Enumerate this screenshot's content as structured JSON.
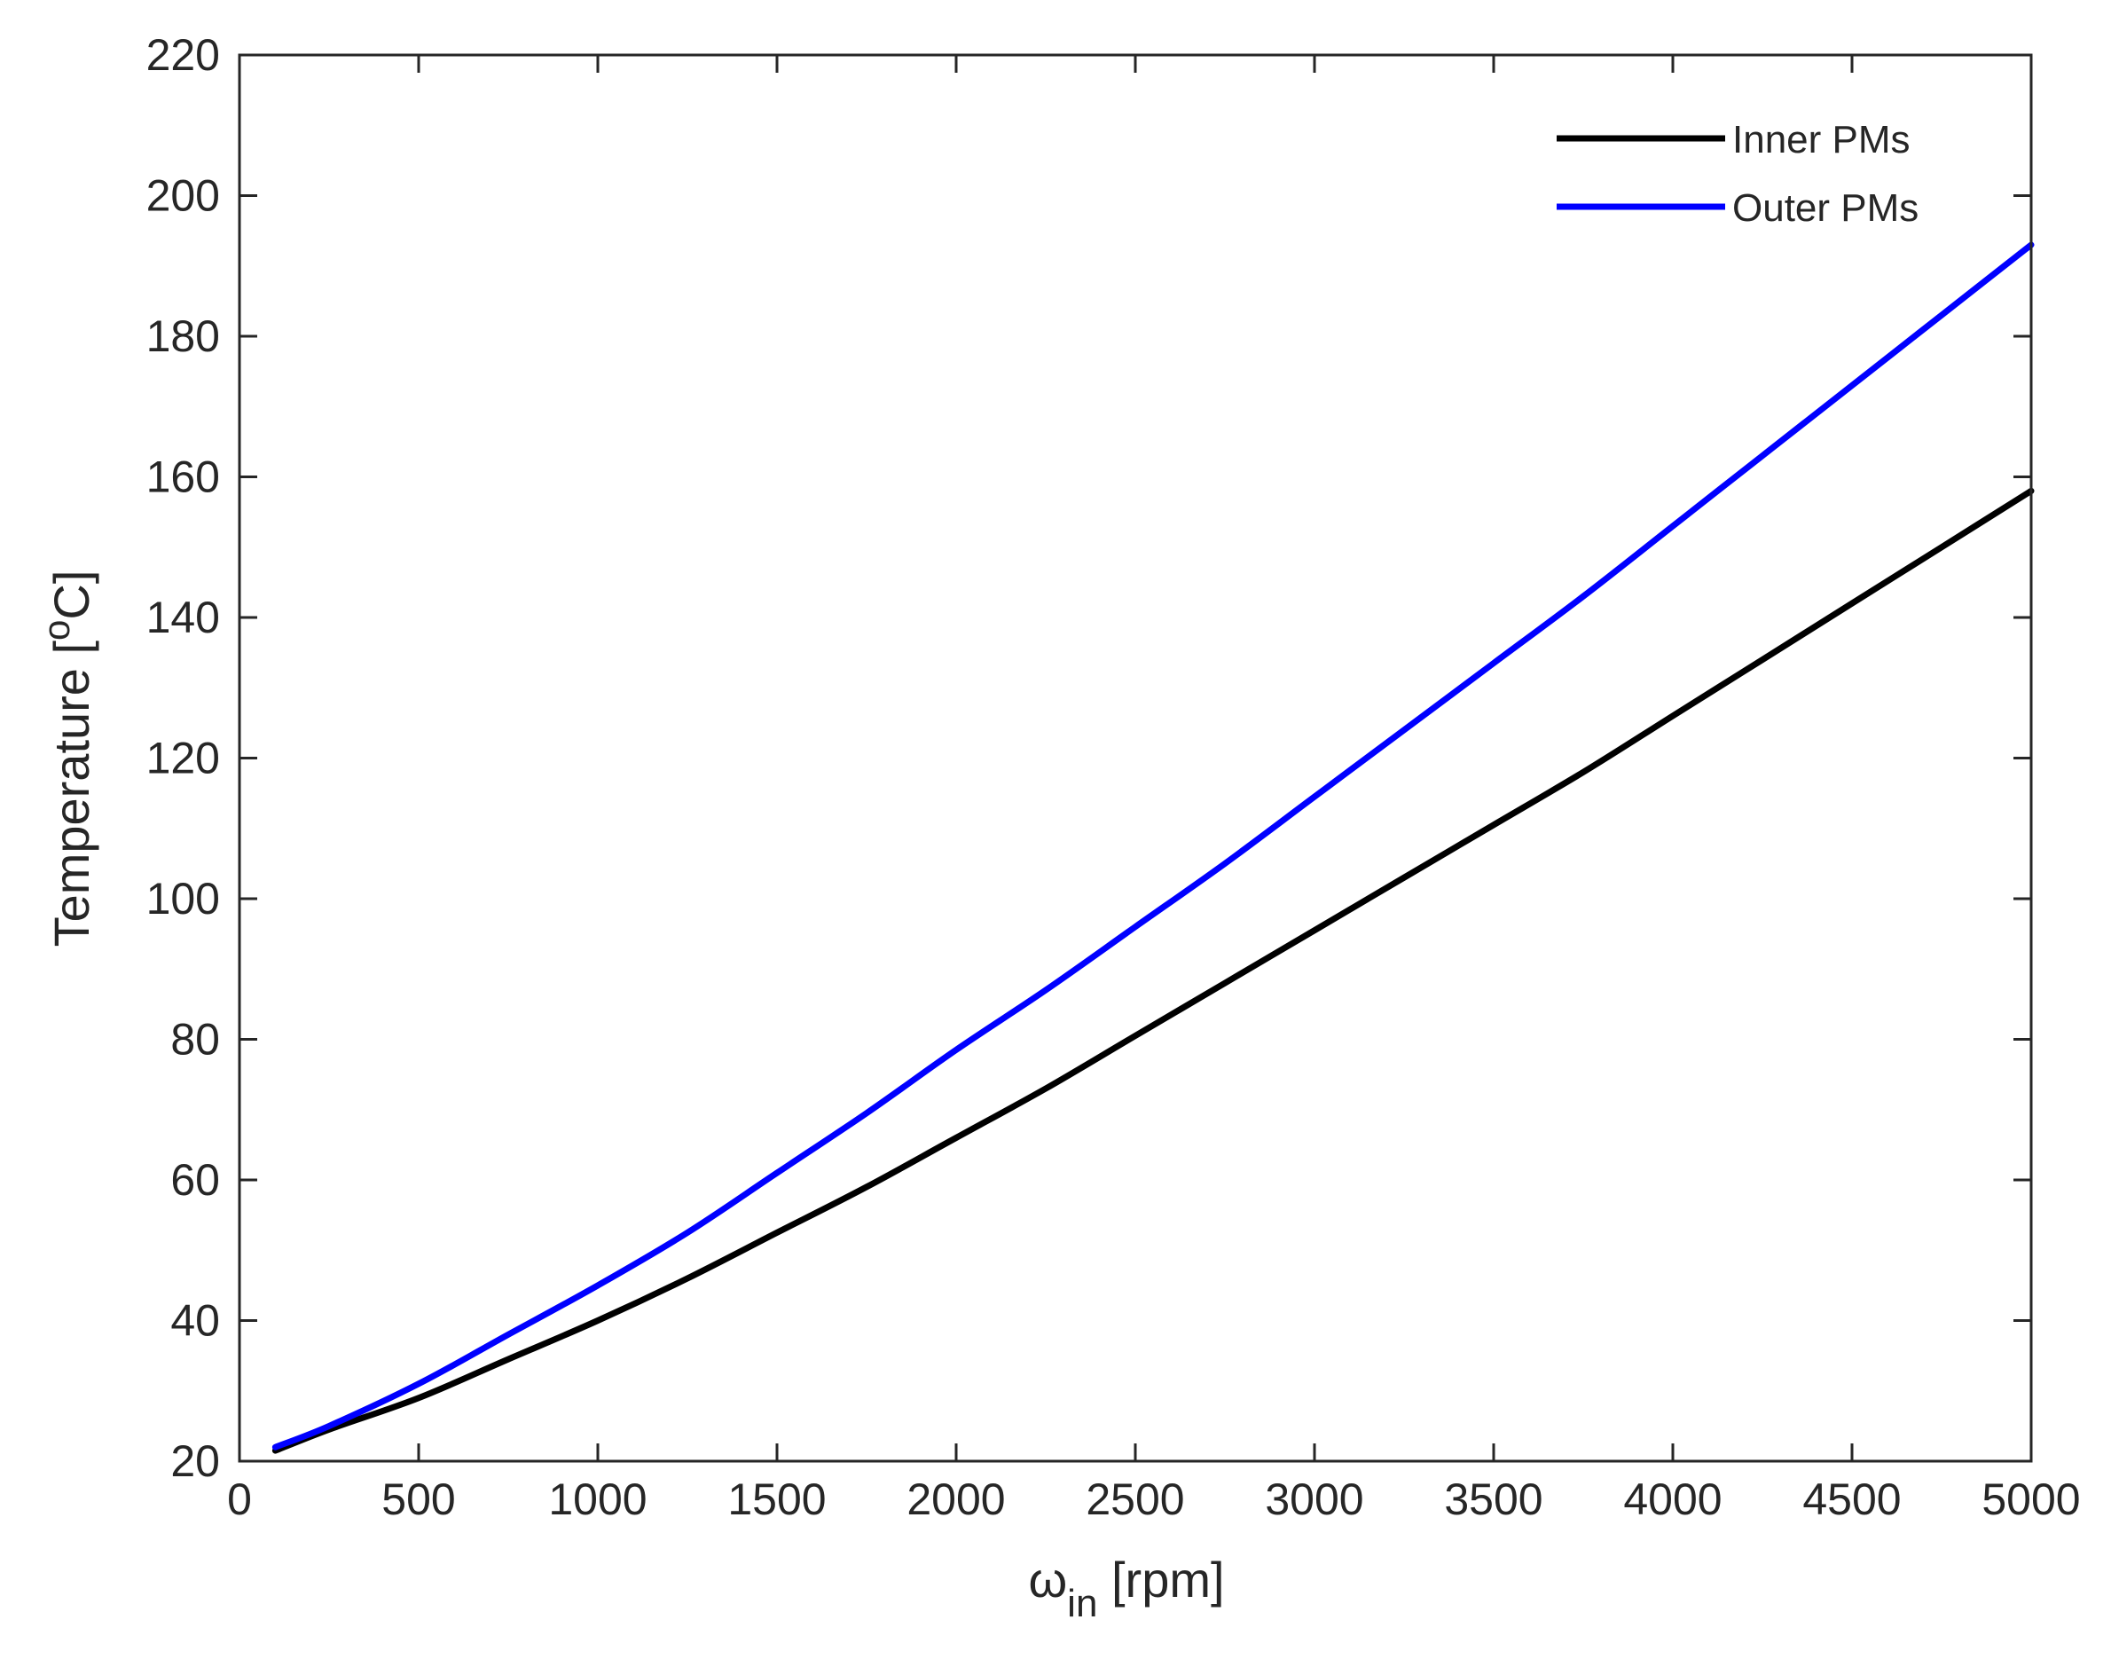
{
  "chart_data": {
    "type": "line",
    "xlabel": {
      "main": "ω",
      "sub": "in",
      "rest": " [rpm]"
    },
    "ylabel": {
      "main": "Temperature [",
      "sup": "o",
      "rest": "C]"
    },
    "xlim": [
      0,
      5000
    ],
    "ylim": [
      20,
      220
    ],
    "xticks": [
      0,
      500,
      1000,
      1500,
      2000,
      2500,
      3000,
      3500,
      4000,
      4500,
      5000
    ],
    "yticks": [
      20,
      40,
      60,
      80,
      100,
      120,
      140,
      160,
      180,
      200,
      220
    ],
    "grid": false,
    "legend_position": "top-right",
    "series": [
      {
        "name": "Inner PMs",
        "color": "#000000",
        "x": [
          100,
          250,
          500,
          750,
          1000,
          1250,
          1500,
          1750,
          2000,
          2250,
          2500,
          2750,
          3000,
          3250,
          3500,
          3750,
          4000,
          4250,
          4500,
          4750,
          5000
        ],
        "y": [
          21.5,
          24.5,
          29,
          34.5,
          40,
          46,
          52.5,
          59,
          66,
          73,
          80.5,
          88,
          95.5,
          103,
          110.5,
          118,
          126,
          134,
          142,
          150,
          158
        ]
      },
      {
        "name": "Outer PMs",
        "color": "#0000ff",
        "x": [
          100,
          250,
          500,
          750,
          1000,
          1250,
          1500,
          1750,
          2000,
          2250,
          2500,
          2750,
          3000,
          3250,
          3500,
          3750,
          4000,
          4250,
          4500,
          4750,
          5000
        ],
        "y": [
          22,
          25,
          31,
          38,
          45,
          52.5,
          61,
          69.5,
          78.5,
          87,
          96,
          105,
          114.5,
          124,
          133.5,
          143,
          153,
          163,
          173,
          183,
          193
        ]
      }
    ]
  }
}
